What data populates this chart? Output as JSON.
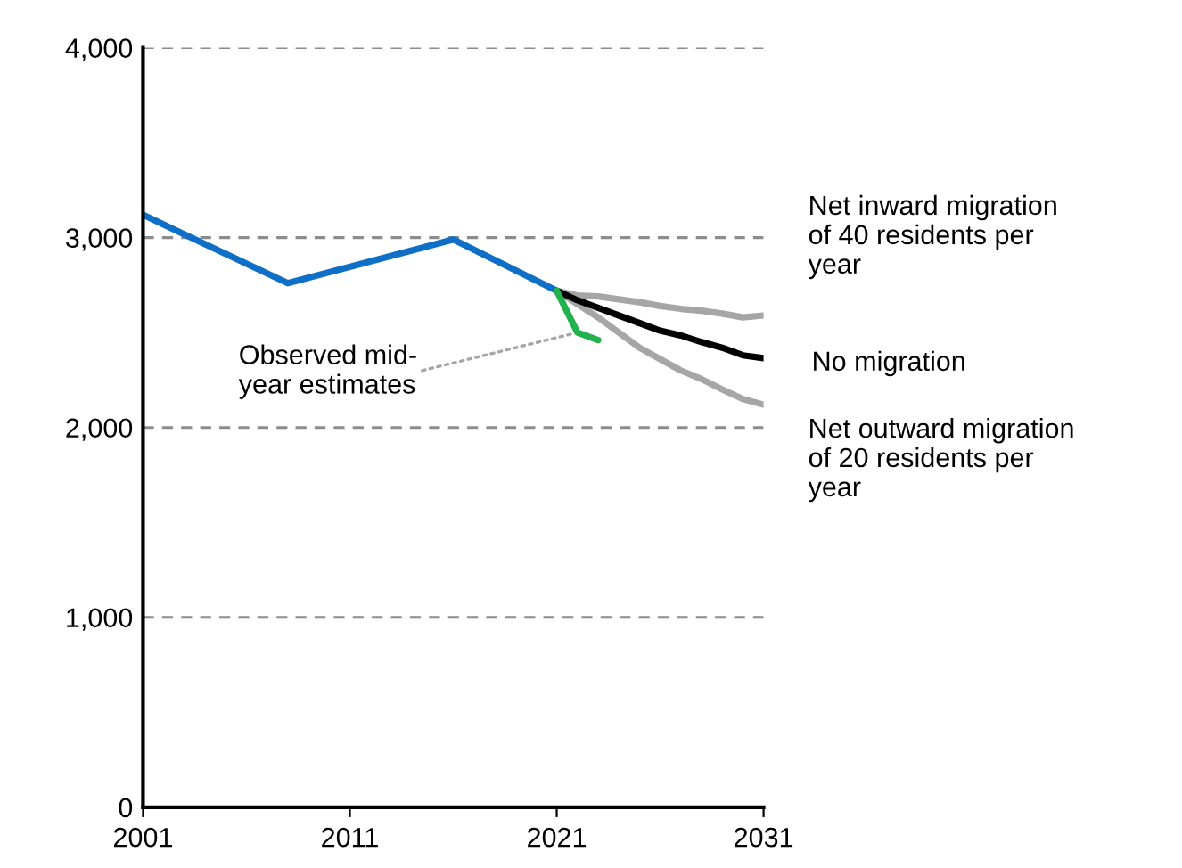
{
  "chart_data": {
    "type": "line",
    "xlim": [
      2001,
      2031
    ],
    "xticks": [
      2001,
      2011,
      2021,
      2031
    ],
    "ylim": [
      0,
      4000
    ],
    "yticks": [
      0,
      {
        "value": 1000,
        "label": "1,000"
      },
      {
        "value": 2000,
        "label": "2,000"
      },
      {
        "value": 3000,
        "label": "3,000"
      },
      {
        "value": 4000,
        "label": "4,000"
      }
    ],
    "grid": "y",
    "legend": false,
    "marker": "none",
    "line_style": "solid",
    "series": [
      {
        "name": "Net inward migration\nof 40 residents per\nyear",
        "color": "#a6a6a6",
        "x": [
          2021,
          2022,
          2023,
          2024,
          2025,
          2026,
          2027,
          2028,
          2029,
          2030,
          2031
        ],
        "values": [
          2720,
          2695,
          2690,
          2675,
          2660,
          2640,
          2625,
          2615,
          2600,
          2580,
          2590
        ]
      },
      {
        "name": "Net outward migration\nof 20 residents per\nyear",
        "color": "#a6a6a6",
        "x": [
          2021,
          2022,
          2023,
          2024,
          2025,
          2026,
          2027,
          2028,
          2029,
          2030,
          2031
        ],
        "values": [
          2720,
          2650,
          2580,
          2500,
          2420,
          2360,
          2300,
          2255,
          2200,
          2150,
          2120
        ]
      },
      {
        "name": "No migration",
        "color": "#000000",
        "x": [
          2021,
          2022,
          2023,
          2024,
          2025,
          2026,
          2027,
          2028,
          2029,
          2030,
          2031
        ],
        "values": [
          2720,
          2670,
          2630,
          2590,
          2550,
          2510,
          2485,
          2450,
          2420,
          2380,
          2365
        ]
      },
      {
        "color": "#0f6fc6",
        "x": [
          2001,
          2008,
          2016,
          2021
        ],
        "values": [
          3120,
          2760,
          2990,
          2720
        ]
      },
      {
        "color": "#22b14c",
        "x": [
          2021,
          2022,
          2023
        ],
        "values": [
          2720,
          2500,
          2460
        ]
      }
    ],
    "annotations": [
      {
        "text": "Observed mid-\nyear estimates",
        "x": 2022,
        "y": 2500
      }
    ]
  }
}
